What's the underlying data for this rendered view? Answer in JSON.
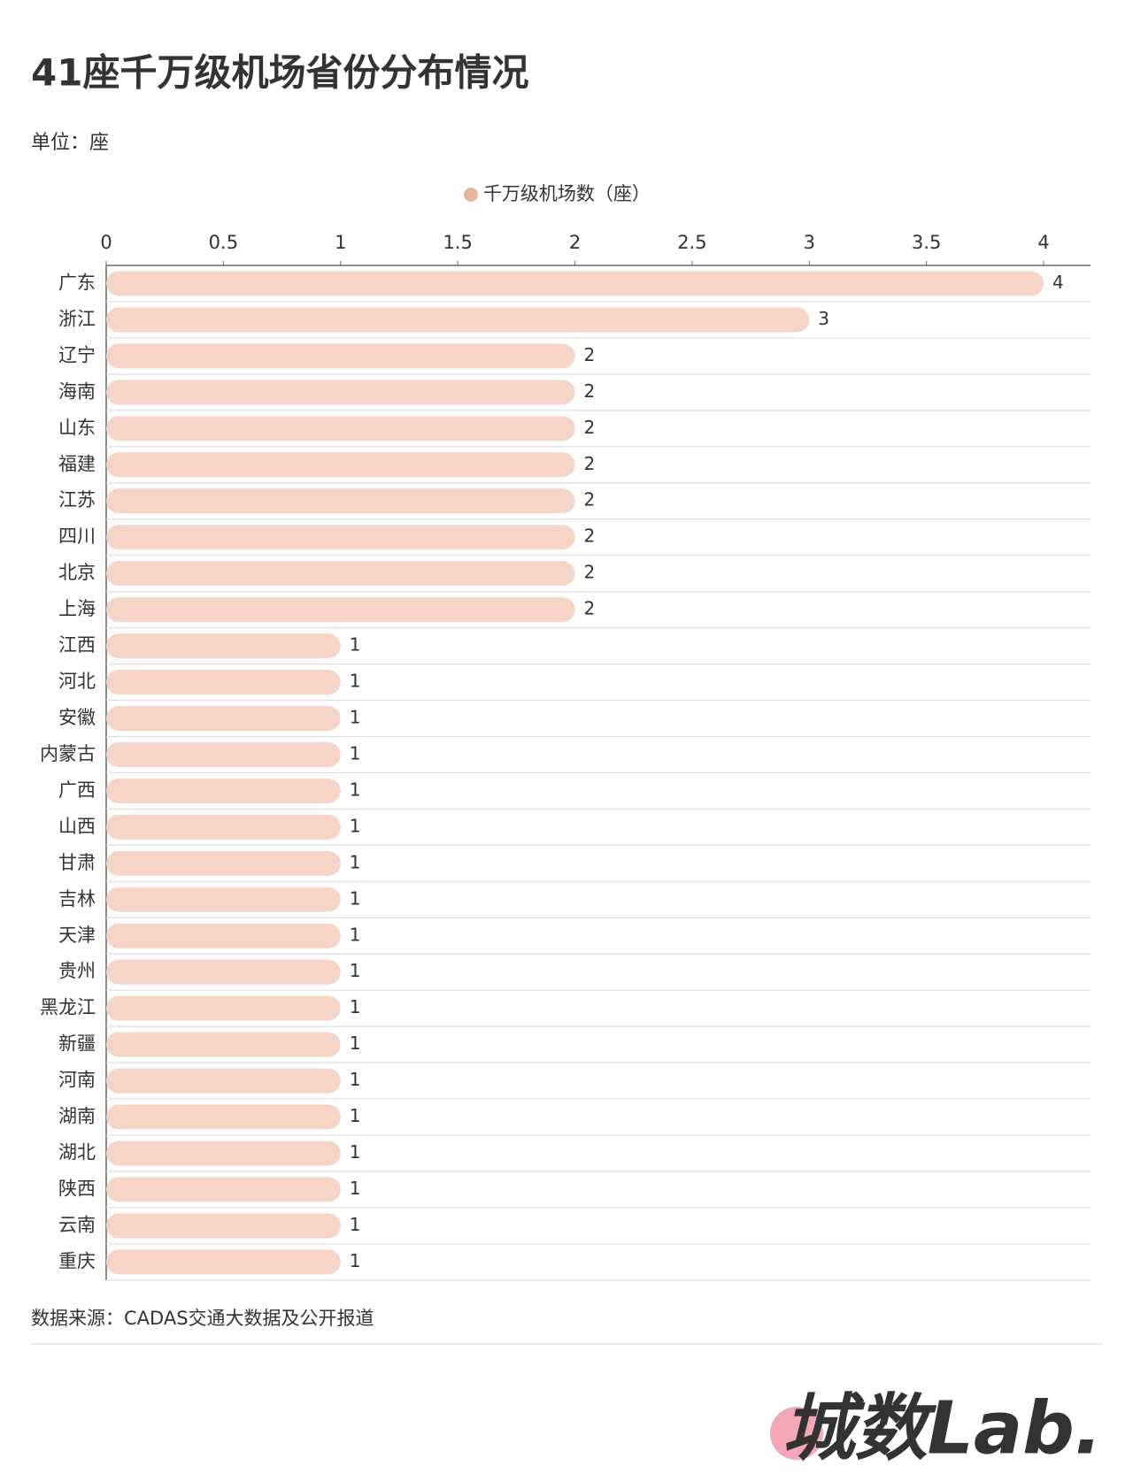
{
  "chart_data": {
    "type": "bar",
    "orientation": "horizontal",
    "title": "41座千万级机场省份分布情况",
    "subtitle": "单位：座",
    "source": "数据来源：CADAS交通大数据及公开报道",
    "logo": "城数Lab.",
    "categories": [
      "广东",
      "浙江",
      "辽宁",
      "海南",
      "山东",
      "福建",
      "江苏",
      "四川",
      "北京",
      "上海",
      "江西",
      "河北",
      "安徽",
      "内蒙古",
      "广西",
      "山西",
      "甘肃",
      "吉林",
      "天津",
      "贵州",
      "黑龙江",
      "新疆",
      "河南",
      "湖南",
      "湖北",
      "陕西",
      "云南",
      "重庆"
    ],
    "series": [
      {
        "name": "千万级机场数（座）",
        "color": "#f6d4c6",
        "legend_color": "#eab49c",
        "values": [
          4,
          3,
          2,
          2,
          2,
          2,
          2,
          2,
          2,
          2,
          1,
          1,
          1,
          1,
          1,
          1,
          1,
          1,
          1,
          1,
          1,
          1,
          1,
          1,
          1,
          1,
          1,
          1
        ]
      }
    ],
    "xlim": [
      0,
      4.2
    ],
    "xticks": [
      0,
      0.5,
      1,
      1.5,
      2,
      2.5,
      3,
      3.5,
      4
    ]
  }
}
